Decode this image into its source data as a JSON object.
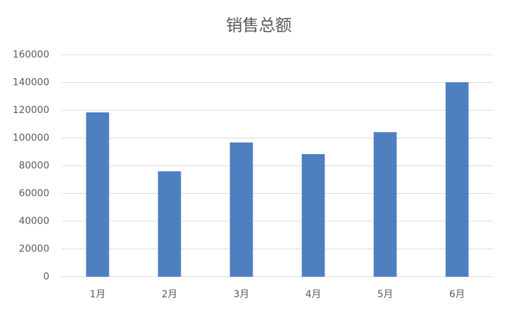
{
  "chart_data": {
    "type": "bar",
    "title": "销售总额",
    "categories": [
      "1月",
      "2月",
      "3月",
      "4月",
      "5月",
      "6月"
    ],
    "values": [
      118500,
      76000,
      96800,
      88400,
      104200,
      140200
    ],
    "color": "#4e7fbf",
    "ylim": [
      0,
      160000
    ],
    "yticks": [
      0,
      20000,
      40000,
      60000,
      80000,
      100000,
      120000,
      140000,
      160000
    ],
    "grid": true
  }
}
